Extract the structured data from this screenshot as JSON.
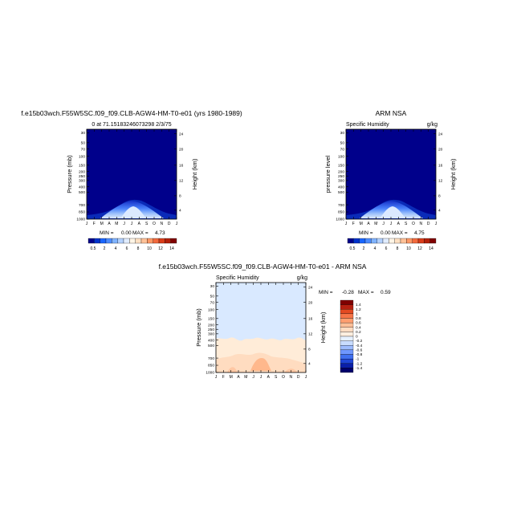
{
  "chart_data": [
    {
      "type": "heatmap",
      "title": "f.e15b03wch.F55W5SC.f09_f09.CLB-AGW4-HM-T0-e01 (yrs 1980-1989)",
      "subtitle": "0 at 71.15183246073298 2/3/75",
      "ylabel": "Pressure (mb)",
      "ylabel_right": "Height (km)",
      "x_ticks": [
        "J",
        "F",
        "M",
        "A",
        "M",
        "J",
        "J",
        "A",
        "S",
        "O",
        "N",
        "D",
        "J"
      ],
      "y_ticks": [
        "30",
        "50",
        "70",
        "100",
        "150",
        "200",
        "250",
        "300",
        "400",
        "500",
        "700",
        "850",
        "1000"
      ],
      "y_ticks_right": [
        "24",
        "20",
        "16",
        "12",
        "8",
        "4"
      ],
      "stats": {
        "min_label": "MIN =",
        "min": "0.00",
        "max_label": "MAX =",
        "max": "4.73"
      },
      "min": 0.0,
      "max": 4.73,
      "colorbar_ticks": [
        "0.5",
        "2",
        "4",
        "6",
        "8",
        "10",
        "12",
        "14"
      ]
    },
    {
      "type": "heatmap",
      "title": "ARM  NSA",
      "subtitle": "Specific Humidity",
      "units": "g/kg",
      "ylabel": "pressure level",
      "ylabel_right": "Height (km)",
      "x_ticks": [
        "J",
        "F",
        "M",
        "A",
        "M",
        "J",
        "J",
        "A",
        "S",
        "O",
        "N",
        "D",
        "J"
      ],
      "y_ticks": [
        "30",
        "50",
        "70",
        "100",
        "150",
        "200",
        "250",
        "300",
        "400",
        "500",
        "700",
        "850",
        "1000"
      ],
      "y_ticks_right": [
        "24",
        "20",
        "16",
        "12",
        "8",
        "4"
      ],
      "stats": {
        "min_label": "MIN =",
        "min": "0.00",
        "max_label": "MAX =",
        "max": "4.75"
      },
      "min": 0.0,
      "max": 4.75,
      "colorbar_ticks": [
        "0.5",
        "2",
        "4",
        "6",
        "8",
        "10",
        "12",
        "14"
      ]
    },
    {
      "type": "heatmap",
      "title": "f.e15b03wch.F55W5SC.f09_f09.CLB-AGW4-HM-T0-e01  -  ARM  NSA",
      "subtitle": "Specific Humidity",
      "units": "g/kg",
      "ylabel": "Pressure (mb)",
      "ylabel_right": "Height (km)",
      "x_ticks": [
        "J",
        "F",
        "M",
        "A",
        "M",
        "J",
        "J",
        "A",
        "S",
        "O",
        "N",
        "D",
        "J"
      ],
      "y_ticks": [
        "30",
        "50",
        "70",
        "100",
        "150",
        "200",
        "250",
        "300",
        "400",
        "500",
        "700",
        "850",
        "1000"
      ],
      "y_ticks_right": [
        "24",
        "20",
        "16",
        "12",
        "8",
        "4"
      ],
      "stats": {
        "min_label": "MIN =",
        "min": "-0.28",
        "max_label": "MAX =",
        "max": "0.59"
      },
      "min": -0.28,
      "max": 0.59,
      "colorbar_ticks": [
        "1.4",
        "1.2",
        "1",
        "0.8",
        "0.6",
        "0.4",
        "0.2",
        "0",
        "-0.2",
        "-0.4",
        "-0.6",
        "-0.8",
        "-1",
        "-1.2",
        "-1.4"
      ]
    }
  ],
  "colors": {
    "abs_scale": [
      "#00008b",
      "#0033cc",
      "#1a66ff",
      "#4d8cff",
      "#80b3ff",
      "#b3d1ff",
      "#e0ecff",
      "#fff5e6",
      "#ffe0c2",
      "#ffc299",
      "#ff9966",
      "#f26a3d",
      "#d93d1a",
      "#b3200a",
      "#800000"
    ],
    "diff_scale": [
      "#00006b",
      "#0a1fa8",
      "#1f45d6",
      "#4070f0",
      "#6f98ff",
      "#9dbcff",
      "#c8dcff",
      "#e6f1ff",
      "#ffefe0",
      "#ffdcc2",
      "#ffc099",
      "#ff9e70",
      "#f77548",
      "#e34a22",
      "#b52010",
      "#800000"
    ]
  }
}
